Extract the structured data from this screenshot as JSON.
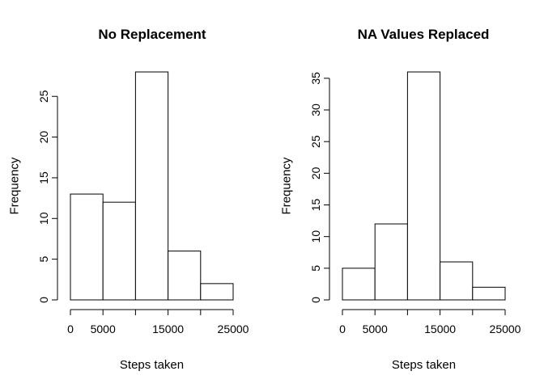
{
  "chart_data": [
    {
      "type": "bar",
      "title": "No Replacement",
      "xlabel": "Steps taken",
      "ylabel": "Frequency",
      "bin_edges": [
        0,
        5000,
        10000,
        15000,
        20000,
        25000
      ],
      "values": [
        13,
        12,
        28,
        6,
        2
      ],
      "xlim": [
        0,
        25000
      ],
      "ylim": [
        0,
        28
      ],
      "x_ticks": [
        0,
        5000,
        10000,
        15000,
        20000,
        25000
      ],
      "x_tick_labels": [
        "0",
        "5000",
        "",
        "15000",
        "",
        "25000"
      ],
      "y_ticks": [
        0,
        5,
        10,
        15,
        20,
        25
      ],
      "y_tick_labels": [
        "0",
        "5",
        "10",
        "15",
        "20",
        "25"
      ],
      "grid": false,
      "legend": "none"
    },
    {
      "type": "bar",
      "title": "NA Values Replaced",
      "xlabel": "Steps taken",
      "ylabel": "Frequency",
      "bin_edges": [
        0,
        5000,
        10000,
        15000,
        20000,
        25000
      ],
      "values": [
        5,
        12,
        36,
        6,
        2
      ],
      "xlim": [
        0,
        25000
      ],
      "ylim": [
        0,
        36
      ],
      "x_ticks": [
        0,
        5000,
        10000,
        15000,
        20000,
        25000
      ],
      "x_tick_labels": [
        "0",
        "5000",
        "",
        "15000",
        "",
        "25000"
      ],
      "y_ticks": [
        0,
        5,
        10,
        15,
        20,
        25,
        30,
        35
      ],
      "y_tick_labels": [
        "0",
        "5",
        "10",
        "15",
        "20",
        "25",
        "30",
        "35"
      ],
      "grid": false,
      "legend": "none"
    }
  ]
}
